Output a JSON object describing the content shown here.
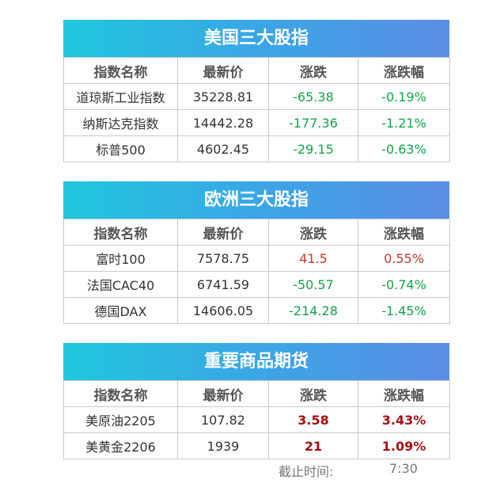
{
  "us": {
    "title": "美国三大股指",
    "headers": [
      "指数名称",
      "最新价",
      "涨跌",
      "涨跌幅"
    ],
    "rows": [
      {
        "name": "道琼斯工业指数",
        "price": "35228.81",
        "change": "-65.38",
        "pct": "-0.19%"
      },
      {
        "name": "纳斯达克指数",
        "price": "14442.28",
        "change": "-177.36",
        "pct": "-1.21%"
      },
      {
        "name": "标普500",
        "price": "4602.45",
        "change": "-29.15",
        "pct": "-0.63%"
      }
    ]
  },
  "eu": {
    "title": "欧洲三大股指",
    "headers": [
      "指数名称",
      "最新价",
      "涨跌",
      "涨跌幅"
    ],
    "rows": [
      {
        "name": "富时100",
        "price": "7578.75",
        "change": "41.5",
        "pct": "0.55%"
      },
      {
        "name": "法国CAC40",
        "price": "6741.59",
        "change": "-50.57",
        "pct": "-0.74%"
      },
      {
        "name": "德国DAX",
        "price": "14606.05",
        "change": "-214.28",
        "pct": "-1.45%"
      }
    ]
  },
  "commodities": {
    "title": "重要商品期货",
    "headers": [
      "指数名称",
      "最新价",
      "涨跌",
      "涨跌幅"
    ],
    "rows": [
      {
        "name": "美原油2205",
        "price": "107.82",
        "change": "3.58",
        "pct": "3.43%"
      },
      {
        "name": "美黄金2206",
        "price": "1939",
        "change": "21",
        "pct": "1.09%"
      }
    ]
  },
  "footer": {
    "label": "截止时间:",
    "time": "7:30"
  },
  "colors": {
    "up": "#c0392b",
    "down": "#11a34a",
    "strong_up": "#a30f14",
    "title_gradient_start": "#1ec8dd",
    "title_gradient_end": "#5b8de6"
  }
}
